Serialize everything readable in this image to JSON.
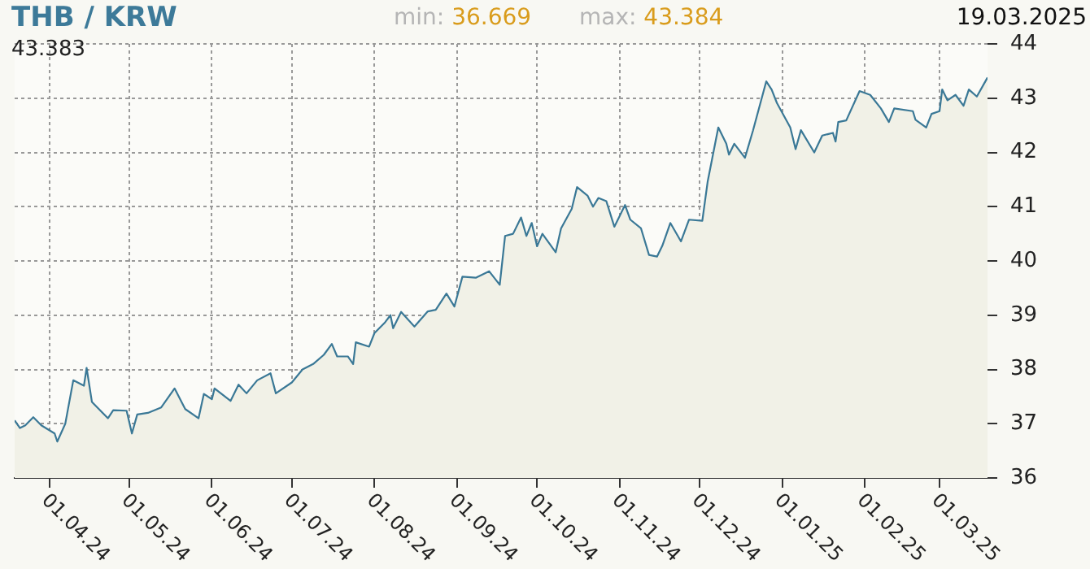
{
  "chart_data": {
    "type": "area",
    "title": "THB / KRW",
    "annotations": [
      "min: 36.669",
      "max: 43.384",
      "19.03.2025",
      "43.383"
    ],
    "x": [
      "2024-03-19",
      "2024-03-21",
      "2024-03-23",
      "2024-03-26",
      "2024-03-29",
      "2024-04-03",
      "2024-04-04",
      "2024-04-07",
      "2024-04-10",
      "2024-04-14",
      "2024-04-15",
      "2024-04-17",
      "2024-04-23",
      "2024-04-25",
      "2024-04-30",
      "2024-05-02",
      "2024-05-04",
      "2024-05-08",
      "2024-05-13",
      "2024-05-18",
      "2024-05-22",
      "2024-05-27",
      "2024-05-29",
      "2024-06-01",
      "2024-06-02",
      "2024-06-08",
      "2024-06-11",
      "2024-06-14",
      "2024-06-18",
      "2024-06-23",
      "2024-06-25",
      "2024-07-01",
      "2024-07-05",
      "2024-07-09",
      "2024-07-13",
      "2024-07-16",
      "2024-07-18",
      "2024-07-22",
      "2024-07-24",
      "2024-07-25",
      "2024-07-30",
      "2024-08-01",
      "2024-08-05",
      "2024-08-07",
      "2024-08-08",
      "2024-08-11",
      "2024-08-16",
      "2024-08-21",
      "2024-08-24",
      "2024-08-28",
      "2024-08-31",
      "2024-09-03",
      "2024-09-08",
      "2024-09-13",
      "2024-09-17",
      "2024-09-19",
      "2024-09-22",
      "2024-09-25",
      "2024-09-27",
      "2024-09-29",
      "2024-10-01",
      "2024-10-03",
      "2024-10-08",
      "2024-10-10",
      "2024-10-14",
      "2024-10-16",
      "2024-10-20",
      "2024-10-22",
      "2024-10-24",
      "2024-10-27",
      "2024-10-30",
      "2024-11-03",
      "2024-11-05",
      "2024-11-09",
      "2024-11-12",
      "2024-11-15",
      "2024-11-17",
      "2024-11-20",
      "2024-11-24",
      "2024-11-27",
      "2024-12-02",
      "2024-12-04",
      "2024-12-08",
      "2024-12-11",
      "2024-12-12",
      "2024-12-14",
      "2024-12-18",
      "2024-12-21",
      "2024-12-26",
      "2024-12-28",
      "2024-12-30",
      "2025-01-04",
      "2025-01-06",
      "2025-01-08",
      "2025-01-13",
      "2025-01-16",
      "2025-01-20",
      "2025-01-21",
      "2025-01-22",
      "2025-01-25",
      "2025-01-30",
      "2025-02-03",
      "2025-02-07",
      "2025-02-10",
      "2025-02-12",
      "2025-02-19",
      "2025-02-20",
      "2025-02-24",
      "2025-02-26",
      "2025-03-01",
      "2025-03-02",
      "2025-03-04",
      "2025-03-07",
      "2025-03-10",
      "2025-03-12",
      "2025-03-15",
      "2025-03-19"
    ],
    "series": [
      {
        "color": "#3a7896",
        "values": [
          37.06,
          36.92,
          36.97,
          37.12,
          36.97,
          36.82,
          36.67,
          37.0,
          37.8,
          37.7,
          38.03,
          37.4,
          37.1,
          37.25,
          37.24,
          36.82,
          37.17,
          37.2,
          37.3,
          37.65,
          37.27,
          37.1,
          37.55,
          37.45,
          37.65,
          37.42,
          37.72,
          37.56,
          37.8,
          37.93,
          37.56,
          37.76,
          38.0,
          38.1,
          38.27,
          38.47,
          38.24,
          38.24,
          38.1,
          38.5,
          38.42,
          38.67,
          38.87,
          39.0,
          38.76,
          39.06,
          38.79,
          39.07,
          39.1,
          39.4,
          39.16,
          39.71,
          39.69,
          39.81,
          39.56,
          40.46,
          40.5,
          40.8,
          40.46,
          40.7,
          40.27,
          40.5,
          40.16,
          40.6,
          40.96,
          41.36,
          41.2,
          41.0,
          41.16,
          41.1,
          40.63,
          41.03,
          40.76,
          40.6,
          40.11,
          40.08,
          40.28,
          40.7,
          40.36,
          40.76,
          40.74,
          41.46,
          42.46,
          42.16,
          41.96,
          42.16,
          41.9,
          42.4,
          43.31,
          43.16,
          42.91,
          42.46,
          42.06,
          42.41,
          42.0,
          42.31,
          42.36,
          42.2,
          42.56,
          42.59,
          43.13,
          43.06,
          42.81,
          42.56,
          42.81,
          42.76,
          42.6,
          42.46,
          42.71,
          42.76,
          43.16,
          42.96,
          43.06,
          42.86,
          43.16,
          43.03,
          43.38
        ]
      }
    ],
    "xlim": [
      "2024-03-19",
      "2025-03-19"
    ],
    "xticks": [
      {
        "value": "2024-04-01",
        "label": "01.04.24"
      },
      {
        "value": "2024-05-01",
        "label": "01.05.24"
      },
      {
        "value": "2024-06-01",
        "label": "01.06.24"
      },
      {
        "value": "2024-07-01",
        "label": "01.07.24"
      },
      {
        "value": "2024-08-01",
        "label": "01.08.24"
      },
      {
        "value": "2024-09-01",
        "label": "01.09.24"
      },
      {
        "value": "2024-10-01",
        "label": "01.10.24"
      },
      {
        "value": "2024-11-01",
        "label": "01.11.24"
      },
      {
        "value": "2024-12-01",
        "label": "01.12.24"
      },
      {
        "value": "2025-01-01",
        "label": "01.01.25"
      },
      {
        "value": "2025-02-01",
        "label": "01.02.25"
      },
      {
        "value": "2025-03-01",
        "label": "01.03.25"
      }
    ],
    "ylim": [
      36,
      44
    ],
    "yticks": [
      36,
      37,
      38,
      39,
      40,
      41,
      42,
      43,
      44
    ],
    "grid": true,
    "marker": "none",
    "line_style": "solid"
  }
}
